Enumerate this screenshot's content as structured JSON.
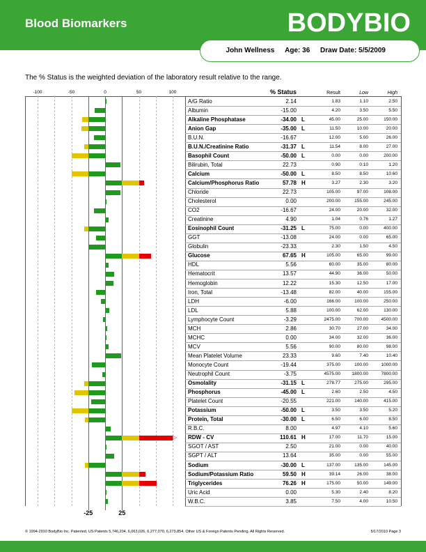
{
  "header": {
    "title": "Blood Biomarkers",
    "logo": "BODYBIO"
  },
  "patient": {
    "name": "John Wellness",
    "age": "Age: 36",
    "draw_date": "Draw Date: 5/5/2009"
  },
  "intro": "The % Status is the weighted deviation of the laboratory result relative to the range.",
  "table": {
    "axis_ticks": [
      "-100",
      "-50",
      "0",
      "50",
      "100"
    ],
    "headers": {
      "status": "% Status",
      "result": "Result",
      "low": "Low",
      "high": "High"
    },
    "bottom_ticks": [
      "-25",
      "25"
    ],
    "rows": [
      {
        "name": "A/G Ratio",
        "status": "2.14",
        "flag": "",
        "result": "1.83",
        "low": "1.10",
        "high": "2.50",
        "pct": 2.14
      },
      {
        "name": "Albumin",
        "status": "-15.00",
        "flag": "",
        "result": "4.20",
        "low": "3.50",
        "high": "5.50",
        "pct": -15
      },
      {
        "name": "Alkaline Phosphatase",
        "status": "-34.00",
        "flag": "L",
        "result": "45.00",
        "low": "25.00",
        "high": "150.00",
        "pct": -34,
        "bold": true
      },
      {
        "name": "Anion Gap",
        "status": "-35.00",
        "flag": "L",
        "result": "11.50",
        "low": "10.00",
        "high": "20.00",
        "pct": -35,
        "bold": true
      },
      {
        "name": "B.U.N.",
        "status": "-16.67",
        "flag": "",
        "result": "12.00",
        "low": "5.00",
        "high": "26.00",
        "pct": -16.67
      },
      {
        "name": "B.U.N./Creatinine Ratio",
        "status": "-31.37",
        "flag": "L",
        "result": "11.54",
        "low": "8.00",
        "high": "27.00",
        "pct": -31.37,
        "bold": true
      },
      {
        "name": "Basophil Count",
        "status": "-50.00",
        "flag": "L",
        "result": "0.00",
        "low": "0.00",
        "high": "200.00",
        "pct": -50,
        "bold": true
      },
      {
        "name": "Bilirubin, Total",
        "status": "22.73",
        "flag": "",
        "result": "0.90",
        "low": "0.10",
        "high": "1.20",
        "pct": 22.73
      },
      {
        "name": "Calcium",
        "status": "-50.00",
        "flag": "L",
        "result": "8.50",
        "low": "8.50",
        "high": "10.60",
        "pct": -50,
        "bold": true
      },
      {
        "name": "Calcium/Phosphorus Ratio",
        "status": "57.78",
        "flag": "H",
        "result": "3.27",
        "low": "2.30",
        "high": "3.20",
        "pct": 57.78,
        "bold": true
      },
      {
        "name": "Chloride",
        "status": "22.73",
        "flag": "",
        "result": "105.00",
        "low": "97.00",
        "high": "108.00",
        "pct": 22.73
      },
      {
        "name": "Cholesterol",
        "status": "0.00",
        "flag": "",
        "result": "200.00",
        "low": "155.00",
        "high": "245.00",
        "pct": 0
      },
      {
        "name": "CO2",
        "status": "-16.67",
        "flag": "",
        "result": "24.00",
        "low": "20.00",
        "high": "32.00",
        "pct": -16.67
      },
      {
        "name": "Creatinine",
        "status": "4.90",
        "flag": "",
        "result": "1.04",
        "low": "0.76",
        "high": "1.27",
        "pct": 4.9
      },
      {
        "name": "Eosinophil Count",
        "status": "-31.25",
        "flag": "L",
        "result": "75.00",
        "low": "0.00",
        "high": "400.00",
        "pct": -31.25,
        "bold": true
      },
      {
        "name": "GGT",
        "status": "-13.08",
        "flag": "",
        "result": "24.00",
        "low": "0.00",
        "high": "65.00",
        "pct": -13.08
      },
      {
        "name": "Globulin",
        "status": "-23.33",
        "flag": "",
        "result": "2.30",
        "low": "1.50",
        "high": "4.50",
        "pct": -23.33
      },
      {
        "name": "Glucose",
        "status": "67.65",
        "flag": "H",
        "result": "105.00",
        "low": "65.00",
        "high": "99.00",
        "pct": 67.65,
        "bold": true
      },
      {
        "name": "HDL",
        "status": "5.56",
        "flag": "",
        "result": "60.00",
        "low": "35.00",
        "high": "80.00",
        "pct": 5.56
      },
      {
        "name": "Hematocrit",
        "status": "13.57",
        "flag": "",
        "result": "44.90",
        "low": "36.00",
        "high": "50.00",
        "pct": 13.57
      },
      {
        "name": "Hemoglobin",
        "status": "12.22",
        "flag": "",
        "result": "15.30",
        "low": "12.50",
        "high": "17.00",
        "pct": 12.22
      },
      {
        "name": "Iron, Total",
        "status": "-13.48",
        "flag": "",
        "result": "82.00",
        "low": "40.00",
        "high": "155.00",
        "pct": -13.48
      },
      {
        "name": "LDH",
        "status": "-6.00",
        "flag": "",
        "result": "166.00",
        "low": "100.00",
        "high": "250.00",
        "pct": -6
      },
      {
        "name": "LDL",
        "status": "5.88",
        "flag": "",
        "result": "100.00",
        "low": "62.00",
        "high": "130.00",
        "pct": 5.88
      },
      {
        "name": "Lymphocyte Count",
        "status": "-3.29",
        "flag": "",
        "result": "2475.00",
        "low": "700.00",
        "high": "4500.00",
        "pct": -3.29
      },
      {
        "name": "MCH",
        "status": "2.86",
        "flag": "",
        "result": "30.70",
        "low": "27.00",
        "high": "34.00",
        "pct": 2.86
      },
      {
        "name": "MCHC",
        "status": "0.00",
        "flag": "",
        "result": "34.00",
        "low": "32.00",
        "high": "36.00",
        "pct": 0
      },
      {
        "name": "MCV",
        "status": "5.56",
        "flag": "",
        "result": "90.00",
        "low": "80.00",
        "high": "98.00",
        "pct": 5.56
      },
      {
        "name": "Mean Platelet Volume",
        "status": "23.33",
        "flag": "",
        "result": "9.60",
        "low": "7.40",
        "high": "10.40",
        "pct": 23.33
      },
      {
        "name": "Monocyte Count",
        "status": "-19.44",
        "flag": "",
        "result": "375.00",
        "low": "100.00",
        "high": "1000.00",
        "pct": -19.44
      },
      {
        "name": "Neutrophil Count",
        "status": "-3.75",
        "flag": "",
        "result": "4575.00",
        "low": "1800.00",
        "high": "7800.00",
        "pct": -3.75
      },
      {
        "name": "Osmolality",
        "status": "-31.15",
        "flag": "L",
        "result": "278.77",
        "low": "275.00",
        "high": "295.00",
        "pct": -31.15,
        "bold": true
      },
      {
        "name": "Phosphorus",
        "status": "-45.00",
        "flag": "L",
        "result": "2.60",
        "low": "2.50",
        "high": "4.50",
        "pct": -45,
        "bold": true
      },
      {
        "name": "Platelet Count",
        "status": "-20.55",
        "flag": "",
        "result": "221.00",
        "low": "140.00",
        "high": "415.00",
        "pct": -20.55
      },
      {
        "name": "Potassium",
        "status": "-50.00",
        "flag": "L",
        "result": "3.50",
        "low": "3.50",
        "high": "5.20",
        "pct": -50,
        "bold": true
      },
      {
        "name": "Protein, Total",
        "status": "-30.00",
        "flag": "L",
        "result": "6.50",
        "low": "6.00",
        "high": "8.50",
        "pct": -30,
        "bold": true
      },
      {
        "name": "R.B.C.",
        "status": "8.00",
        "flag": "",
        "result": "4.97",
        "low": "4.10",
        "high": "5.60",
        "pct": 8
      },
      {
        "name": "RDW - CV",
        "status": "110.61",
        "flag": "H",
        "result": "17.00",
        "low": "11.70",
        "high": "15.00",
        "pct": 110.61,
        "bold": true
      },
      {
        "name": "SGOT / AST",
        "status": "2.50",
        "flag": "",
        "result": "21.00",
        "low": "0.00",
        "high": "40.00",
        "pct": 2.5
      },
      {
        "name": "SGPT / ALT",
        "status": "13.64",
        "flag": "",
        "result": "35.00",
        "low": "0.00",
        "high": "55.00",
        "pct": 13.64
      },
      {
        "name": "Sodium",
        "status": "-30.00",
        "flag": "L",
        "result": "137.00",
        "low": "135.00",
        "high": "145.00",
        "pct": -30,
        "bold": true
      },
      {
        "name": "Sodium/Potassium Ratio",
        "status": "59.50",
        "flag": "H",
        "result": "39.14",
        "low": "26.00",
        "high": "38.00",
        "pct": 59.5,
        "bold": true
      },
      {
        "name": "Triglycerides",
        "status": "76.26",
        "flag": "H",
        "result": "175.00",
        "low": "50.00",
        "high": "149.00",
        "pct": 76.26,
        "bold": true
      },
      {
        "name": "Uric Acid",
        "status": "0.00",
        "flag": "",
        "result": "5.30",
        "low": "2.40",
        "high": "8.20",
        "pct": 0
      },
      {
        "name": "W.B.C.",
        "status": "3.85",
        "flag": "",
        "result": "7.50",
        "low": "4.00",
        "high": "10.50",
        "pct": 3.85
      }
    ]
  },
  "colors": {
    "brand_green": "#3ba635",
    "bar_green": "#1f9a1f",
    "bar_yellow": "#e3c400",
    "bar_red": "#e60000"
  },
  "footer": {
    "copyright": "© 1994-2010 BodyBio Inc. Patented, US Patents 5,746,204, 6,063,026, 6,277,070, 6,273,854. Other US & Foreign Patents Pending. All Rights Reserved.",
    "page": "5/17/2010 Page 3"
  }
}
